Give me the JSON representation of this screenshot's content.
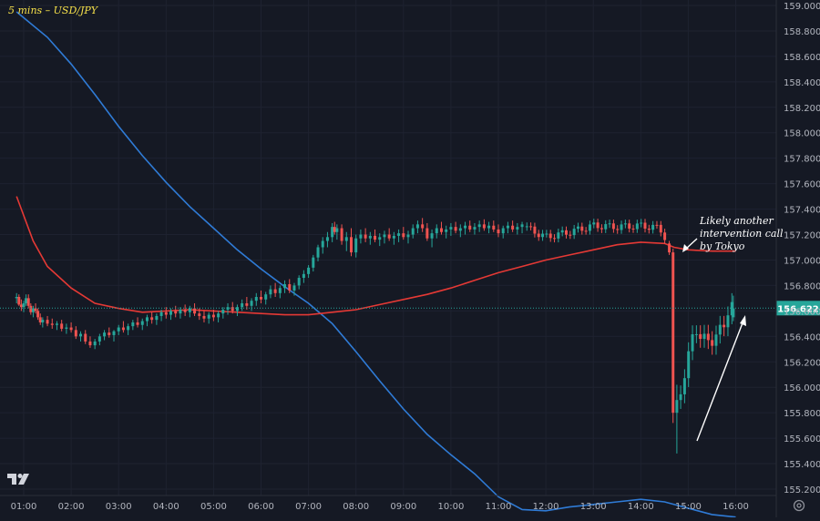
{
  "chart_data": {
    "type": "candlestick",
    "title": "5 mins – USD/JPY",
    "y_axis": {
      "ticks": [
        "159.000",
        "158.800",
        "158.600",
        "158.400",
        "158.200",
        "158.000",
        "157.800",
        "157.600",
        "157.400",
        "157.200",
        "157.000",
        "156.800",
        "156.600",
        "156.400",
        "156.200",
        "156.000",
        "155.800",
        "155.600",
        "155.400",
        "155.200"
      ],
      "min": 155.15,
      "max": 159.05
    },
    "x_axis": {
      "ticks": [
        "01:00",
        "02:00",
        "03:00",
        "04:00",
        "05:00",
        "06:00",
        "07:00",
        "08:00",
        "09:00",
        "10:00",
        "11:00",
        "12:00",
        "13:00",
        "14:00",
        "15:00",
        "16:00"
      ]
    },
    "last_price": "156.622",
    "series": [
      {
        "color": "#2f7bd6",
        "type": "line",
        "points": [
          [
            0.85,
            158.95
          ],
          [
            1.5,
            158.75
          ],
          [
            2,
            158.54
          ],
          [
            2.5,
            158.3
          ],
          [
            3,
            158.05
          ],
          [
            3.5,
            157.82
          ],
          [
            4,
            157.61
          ],
          [
            4.5,
            157.42
          ],
          [
            5,
            157.25
          ],
          [
            5.5,
            157.08
          ],
          [
            6,
            156.93
          ],
          [
            6.5,
            156.79
          ],
          [
            7,
            156.66
          ],
          [
            7.5,
            156.5
          ],
          [
            8,
            156.28
          ],
          [
            8.5,
            156.05
          ],
          [
            9,
            155.83
          ],
          [
            9.5,
            155.63
          ],
          [
            10,
            155.47
          ],
          [
            10.5,
            155.32
          ],
          [
            11,
            155.14
          ],
          [
            11.5,
            155.04
          ],
          [
            12,
            155.03
          ],
          [
            12.5,
            155.06
          ],
          [
            13,
            155.08
          ],
          [
            13.5,
            155.1
          ],
          [
            14,
            155.12
          ],
          [
            14.5,
            155.1
          ],
          [
            15,
            155.05
          ],
          [
            15.5,
            155.0
          ],
          [
            16,
            154.98
          ]
        ]
      },
      {
        "color": "#e53935",
        "type": "line",
        "points": [
          [
            0.85,
            157.5
          ],
          [
            1.2,
            157.15
          ],
          [
            1.5,
            156.95
          ],
          [
            2,
            156.78
          ],
          [
            2.5,
            156.66
          ],
          [
            3,
            156.62
          ],
          [
            3.5,
            156.59
          ],
          [
            4,
            156.6
          ],
          [
            4.5,
            156.61
          ],
          [
            5,
            156.6
          ],
          [
            5.5,
            156.59
          ],
          [
            6,
            156.58
          ],
          [
            6.5,
            156.57
          ],
          [
            7,
            156.57
          ],
          [
            7.5,
            156.59
          ],
          [
            8,
            156.61
          ],
          [
            8.5,
            156.65
          ],
          [
            9,
            156.69
          ],
          [
            9.5,
            156.73
          ],
          [
            10,
            156.78
          ],
          [
            10.5,
            156.84
          ],
          [
            11,
            156.9
          ],
          [
            11.5,
            156.95
          ],
          [
            12,
            157.0
          ],
          [
            12.5,
            157.04
          ],
          [
            13,
            157.08
          ],
          [
            13.5,
            157.12
          ],
          [
            14,
            157.14
          ],
          [
            14.5,
            157.13
          ],
          [
            14.7,
            157.1
          ],
          [
            15,
            157.08
          ],
          [
            15.5,
            157.07
          ],
          [
            16,
            157.07
          ]
        ]
      }
    ],
    "candles": [
      [
        0.85,
        156.7,
        156.74,
        156.66,
        156.71
      ],
      [
        0.9,
        156.71,
        156.73,
        156.64,
        156.65
      ],
      [
        0.95,
        156.65,
        156.69,
        156.6,
        156.63
      ],
      [
        1.0,
        156.63,
        156.68,
        156.59,
        156.66
      ],
      [
        1.05,
        156.66,
        156.73,
        156.64,
        156.7
      ],
      [
        1.1,
        156.7,
        156.73,
        156.62,
        156.64
      ],
      [
        1.15,
        156.64,
        156.66,
        156.57,
        156.59
      ],
      [
        1.2,
        156.59,
        156.64,
        156.55,
        156.62
      ],
      [
        1.25,
        156.62,
        156.66,
        156.58,
        156.6
      ],
      [
        1.3,
        156.6,
        156.62,
        156.53,
        156.55
      ],
      [
        1.35,
        156.55,
        156.58,
        156.49,
        156.51
      ],
      [
        1.4,
        156.51,
        156.55,
        156.47,
        156.53
      ],
      [
        1.5,
        156.53,
        156.56,
        156.48,
        156.5
      ],
      [
        1.6,
        156.5,
        156.54,
        156.46,
        156.49
      ],
      [
        1.7,
        156.49,
        156.52,
        156.45,
        156.5
      ],
      [
        1.8,
        156.5,
        156.53,
        156.44,
        156.46
      ],
      [
        1.9,
        156.46,
        156.5,
        156.42,
        156.47
      ],
      [
        2.0,
        156.47,
        156.51,
        156.43,
        156.45
      ],
      [
        2.1,
        156.45,
        156.48,
        156.38,
        156.4
      ],
      [
        2.2,
        156.4,
        156.44,
        156.36,
        156.42
      ],
      [
        2.3,
        156.42,
        156.45,
        156.34,
        156.36
      ],
      [
        2.4,
        156.36,
        156.4,
        156.31,
        156.33
      ],
      [
        2.5,
        156.33,
        156.38,
        156.3,
        156.36
      ],
      [
        2.6,
        156.36,
        156.42,
        156.33,
        156.4
      ],
      [
        2.7,
        156.4,
        156.45,
        156.37,
        156.43
      ],
      [
        2.8,
        156.43,
        156.47,
        156.39,
        156.41
      ],
      [
        2.9,
        156.41,
        156.45,
        156.36,
        156.44
      ],
      [
        3.0,
        156.44,
        156.49,
        156.41,
        156.47
      ],
      [
        3.1,
        156.47,
        156.52,
        156.43,
        156.45
      ],
      [
        3.2,
        156.45,
        156.5,
        156.41,
        156.48
      ],
      [
        3.3,
        156.48,
        156.53,
        156.45,
        156.51
      ],
      [
        3.4,
        156.51,
        156.55,
        156.47,
        156.49
      ],
      [
        3.5,
        156.49,
        156.54,
        156.45,
        156.52
      ],
      [
        3.6,
        156.52,
        156.57,
        156.48,
        156.55
      ],
      [
        3.7,
        156.55,
        156.59,
        156.5,
        156.53
      ],
      [
        3.8,
        156.53,
        156.58,
        156.49,
        156.56
      ],
      [
        3.9,
        156.56,
        156.61,
        156.52,
        156.59
      ],
      [
        4.0,
        156.59,
        156.63,
        156.54,
        156.57
      ],
      [
        4.1,
        156.57,
        156.62,
        156.53,
        156.6
      ],
      [
        4.2,
        156.6,
        156.64,
        156.55,
        156.58
      ],
      [
        4.3,
        156.58,
        156.63,
        156.54,
        156.61
      ],
      [
        4.4,
        156.61,
        156.65,
        156.56,
        156.59
      ],
      [
        4.5,
        156.59,
        156.64,
        156.55,
        156.62
      ],
      [
        4.6,
        156.62,
        156.66,
        156.56,
        156.58
      ],
      [
        4.7,
        156.58,
        156.62,
        156.53,
        156.56
      ],
      [
        4.8,
        156.56,
        156.6,
        156.51,
        156.54
      ],
      [
        4.9,
        156.54,
        156.59,
        156.5,
        156.57
      ],
      [
        5.0,
        156.57,
        156.61,
        156.52,
        156.55
      ],
      [
        5.1,
        156.55,
        156.6,
        156.51,
        156.58
      ],
      [
        5.2,
        156.58,
        156.63,
        156.54,
        156.61
      ],
      [
        5.3,
        156.61,
        156.66,
        156.57,
        156.63
      ],
      [
        5.4,
        156.63,
        156.67,
        156.58,
        156.6
      ],
      [
        5.5,
        156.6,
        156.65,
        156.56,
        156.63
      ],
      [
        5.6,
        156.63,
        156.69,
        156.6,
        156.66
      ],
      [
        5.7,
        156.66,
        156.71,
        156.61,
        156.64
      ],
      [
        5.8,
        156.64,
        156.7,
        156.6,
        156.68
      ],
      [
        5.9,
        156.68,
        156.74,
        156.64,
        156.71
      ],
      [
        6.0,
        156.71,
        156.76,
        156.66,
        156.69
      ],
      [
        6.1,
        156.69,
        156.75,
        156.65,
        156.73
      ],
      [
        6.2,
        156.73,
        156.8,
        156.7,
        156.77
      ],
      [
        6.3,
        156.77,
        156.82,
        156.71,
        156.74
      ],
      [
        6.4,
        156.74,
        156.8,
        156.7,
        156.78
      ],
      [
        6.5,
        156.78,
        156.84,
        156.74,
        156.81
      ],
      [
        6.6,
        156.81,
        156.85,
        156.74,
        156.76
      ],
      [
        6.7,
        156.76,
        156.82,
        156.72,
        156.8
      ],
      [
        6.8,
        156.8,
        156.88,
        156.77,
        156.86
      ],
      [
        6.9,
        156.86,
        156.92,
        156.82,
        156.89
      ],
      [
        7.0,
        156.89,
        156.96,
        156.86,
        156.94
      ],
      [
        7.1,
        156.94,
        157.04,
        156.91,
        157.02
      ],
      [
        7.2,
        157.02,
        157.12,
        156.99,
        157.1
      ],
      [
        7.3,
        157.1,
        157.18,
        157.05,
        157.15
      ],
      [
        7.4,
        157.15,
        157.22,
        157.1,
        157.18
      ],
      [
        7.5,
        157.18,
        157.29,
        157.14,
        157.26
      ],
      [
        7.55,
        157.26,
        157.3,
        157.2,
        157.22
      ],
      [
        7.6,
        157.22,
        157.28,
        157.16,
        157.25
      ],
      [
        7.7,
        157.25,
        157.28,
        157.12,
        157.15
      ],
      [
        7.8,
        157.15,
        157.22,
        157.07,
        157.18
      ],
      [
        7.9,
        157.18,
        157.25,
        157.03,
        157.06
      ],
      [
        8.0,
        157.06,
        157.2,
        157.02,
        157.17
      ],
      [
        8.1,
        157.17,
        157.24,
        157.13,
        157.2
      ],
      [
        8.2,
        157.2,
        157.25,
        157.14,
        157.17
      ],
      [
        8.3,
        157.17,
        157.22,
        157.12,
        157.19
      ],
      [
        8.4,
        157.19,
        157.24,
        157.14,
        157.16
      ],
      [
        8.5,
        157.16,
        157.21,
        157.11,
        157.18
      ],
      [
        8.6,
        157.18,
        157.23,
        157.13,
        157.2
      ],
      [
        8.7,
        157.2,
        157.25,
        157.15,
        157.17
      ],
      [
        8.8,
        157.17,
        157.22,
        157.12,
        157.19
      ],
      [
        8.9,
        157.19,
        157.24,
        157.14,
        157.21
      ],
      [
        9.0,
        157.21,
        157.26,
        157.16,
        157.18
      ],
      [
        9.1,
        157.18,
        157.23,
        157.13,
        157.2
      ],
      [
        9.2,
        157.2,
        157.28,
        157.17,
        157.25
      ],
      [
        9.3,
        157.25,
        157.31,
        157.21,
        157.28
      ],
      [
        9.4,
        157.28,
        157.33,
        157.22,
        157.25
      ],
      [
        9.5,
        157.25,
        157.29,
        157.15,
        157.17
      ],
      [
        9.6,
        157.17,
        157.24,
        157.1,
        157.21
      ],
      [
        9.7,
        157.21,
        157.28,
        157.17,
        157.25
      ],
      [
        9.8,
        157.25,
        157.3,
        157.2,
        157.22
      ],
      [
        9.9,
        157.22,
        157.27,
        157.17,
        157.24
      ],
      [
        10.0,
        157.24,
        157.29,
        157.19,
        157.26
      ],
      [
        10.1,
        157.26,
        157.3,
        157.21,
        157.23
      ],
      [
        10.2,
        157.23,
        157.28,
        157.18,
        157.25
      ],
      [
        10.3,
        157.25,
        157.3,
        157.2,
        157.27
      ],
      [
        10.4,
        157.27,
        157.31,
        157.22,
        157.24
      ],
      [
        10.5,
        157.24,
        157.29,
        157.2,
        157.26
      ],
      [
        10.6,
        157.26,
        157.31,
        157.22,
        157.28
      ],
      [
        10.7,
        157.28,
        157.32,
        157.23,
        157.25
      ],
      [
        10.8,
        157.25,
        157.3,
        157.21,
        157.27
      ],
      [
        10.9,
        157.27,
        157.31,
        157.22,
        157.24
      ],
      [
        11.0,
        157.24,
        157.28,
        157.18,
        157.21
      ],
      [
        11.1,
        157.21,
        157.27,
        157.17,
        157.25
      ],
      [
        11.2,
        157.25,
        157.3,
        157.21,
        157.27
      ],
      [
        11.3,
        157.27,
        157.31,
        157.22,
        157.24
      ],
      [
        11.4,
        157.24,
        157.29,
        157.2,
        157.26
      ],
      [
        11.5,
        157.26,
        157.3,
        157.21,
        157.28
      ]
    ],
    "annotation": [
      "Likely another",
      "intervention call",
      "by Tokyo"
    ]
  }
}
